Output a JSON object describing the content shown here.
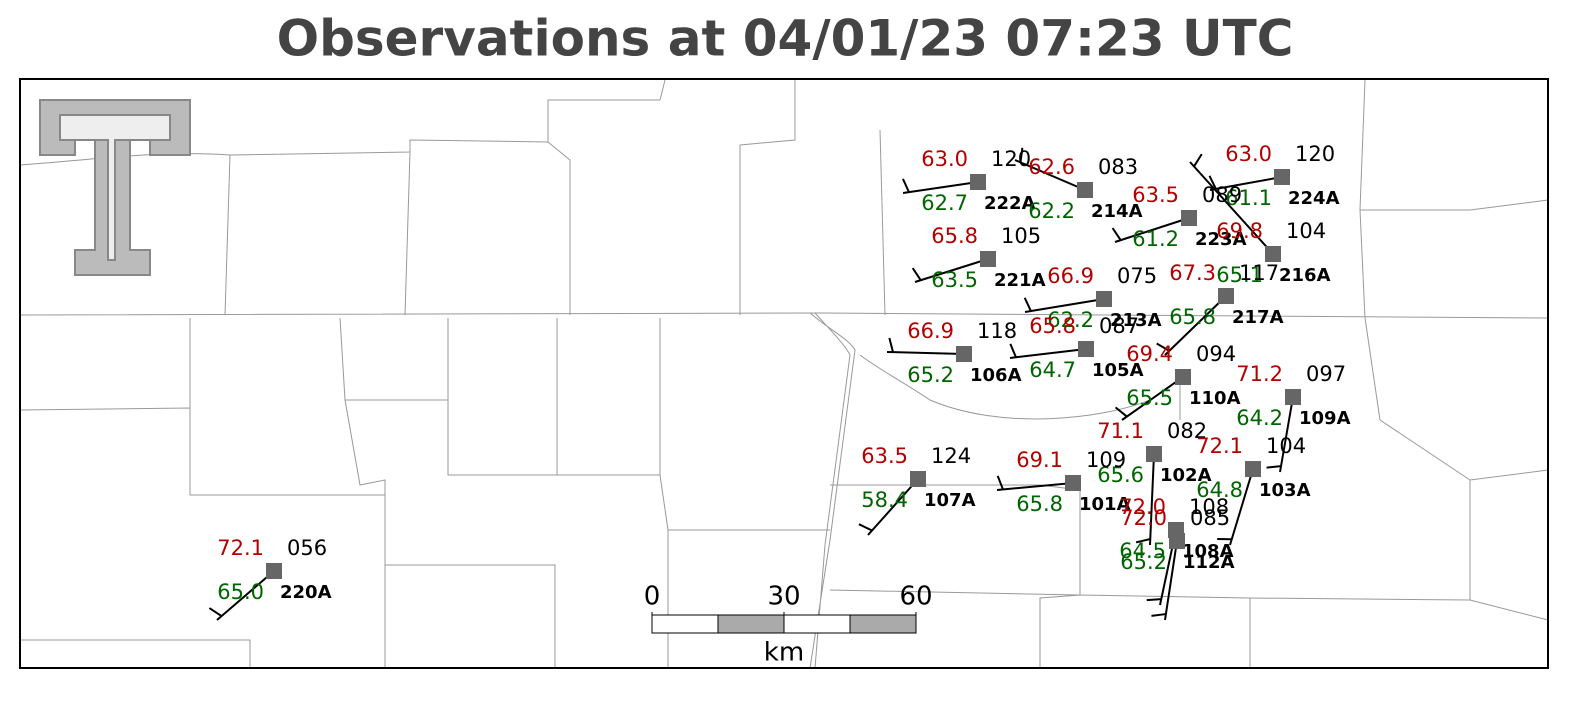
{
  "title": "Observations at 04/01/23 07:23 UTC",
  "stations": [
    {
      "id": "222A",
      "temperature": "63.0",
      "dewpoint": "62.7",
      "pressure": "120"
    },
    {
      "id": "214A",
      "temperature": "62.6",
      "dewpoint": "62.2",
      "pressure": "083"
    },
    {
      "id": "224A",
      "temperature": "63.0",
      "dewpoint": "61.1",
      "pressure": "120"
    },
    {
      "id": "223A",
      "temperature": "63.5",
      "dewpoint": "61.2",
      "pressure": "089"
    },
    {
      "id": "216A",
      "temperature": "69.8",
      "dewpoint": "65.1",
      "pressure": "104"
    },
    {
      "id": "221A",
      "temperature": "65.8",
      "dewpoint": "63.5",
      "pressure": "105"
    },
    {
      "id": "213A",
      "temperature": "66.9",
      "dewpoint": "62.2",
      "pressure": "075"
    },
    {
      "id": "217A",
      "temperature": "67.3",
      "dewpoint": "65.8",
      "pressure": "117"
    },
    {
      "id": "106A",
      "temperature": "66.9",
      "dewpoint": "65.2",
      "pressure": "118"
    },
    {
      "id": "105A",
      "temperature": "65.8",
      "dewpoint": "64.7",
      "pressure": "087"
    },
    {
      "id": "110A",
      "temperature": "69.4",
      "dewpoint": "65.5",
      "pressure": "094"
    },
    {
      "id": "109A",
      "temperature": "71.2",
      "dewpoint": "64.2",
      "pressure": "097"
    },
    {
      "id": "102A",
      "temperature": "71.1",
      "dewpoint": "65.6",
      "pressure": "082"
    },
    {
      "id": "103A",
      "temperature": "72.1",
      "dewpoint": "64.8",
      "pressure": "104"
    },
    {
      "id": "107A",
      "temperature": "63.5",
      "dewpoint": "58.4",
      "pressure": "124"
    },
    {
      "id": "101A",
      "temperature": "69.1",
      "dewpoint": "65.8",
      "pressure": "109"
    },
    {
      "id": "108A",
      "temperature": "72.0",
      "dewpoint": "64.5",
      "pressure": "108"
    },
    {
      "id": "112A",
      "temperature": "72.0",
      "dewpoint": "65.2",
      "pressure": "085"
    },
    {
      "id": "220A",
      "temperature": "72.1",
      "dewpoint": "65.0",
      "pressure": "056"
    }
  ],
  "scale_bar": {
    "ticks": [
      0,
      30,
      60
    ],
    "unit": "km"
  }
}
